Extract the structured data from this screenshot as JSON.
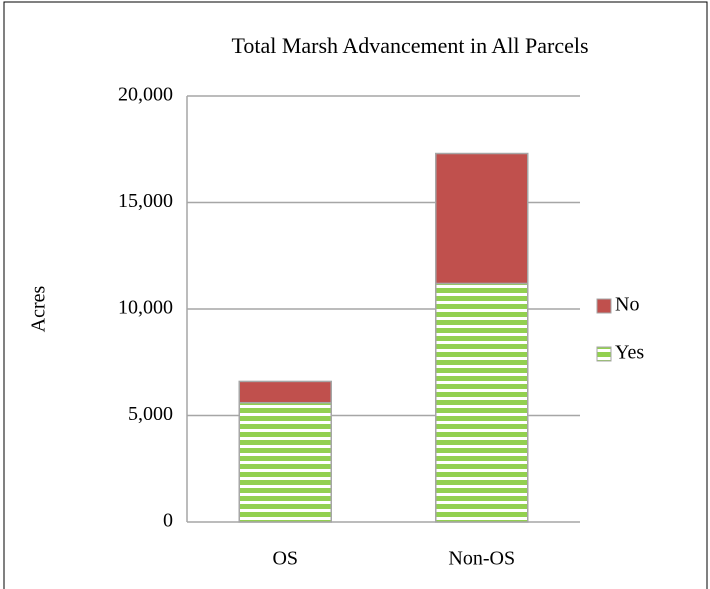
{
  "chart_data": {
    "type": "stacked_bar",
    "title": "Total Marsh Advancement in All Parcels",
    "y_label": "Acres",
    "categories": [
      "OS",
      "Non-OS"
    ],
    "series": [
      {
        "name": "Yes",
        "color": "#92d050",
        "values": [
          5600,
          11200
        ]
      },
      {
        "name": "No",
        "color": "#c0504d",
        "values": [
          1000,
          6100
        ]
      }
    ],
    "ylim": [
      0,
      20000
    ],
    "yticks": [
      0,
      {
        "value": 5000,
        "label": "5,000"
      },
      {
        "value": 10000,
        "label": "10,000"
      },
      {
        "value": 15000,
        "label": "15,000"
      },
      {
        "value": 20000,
        "label": "20,000"
      }
    ],
    "grid": true,
    "legend": "right"
  }
}
